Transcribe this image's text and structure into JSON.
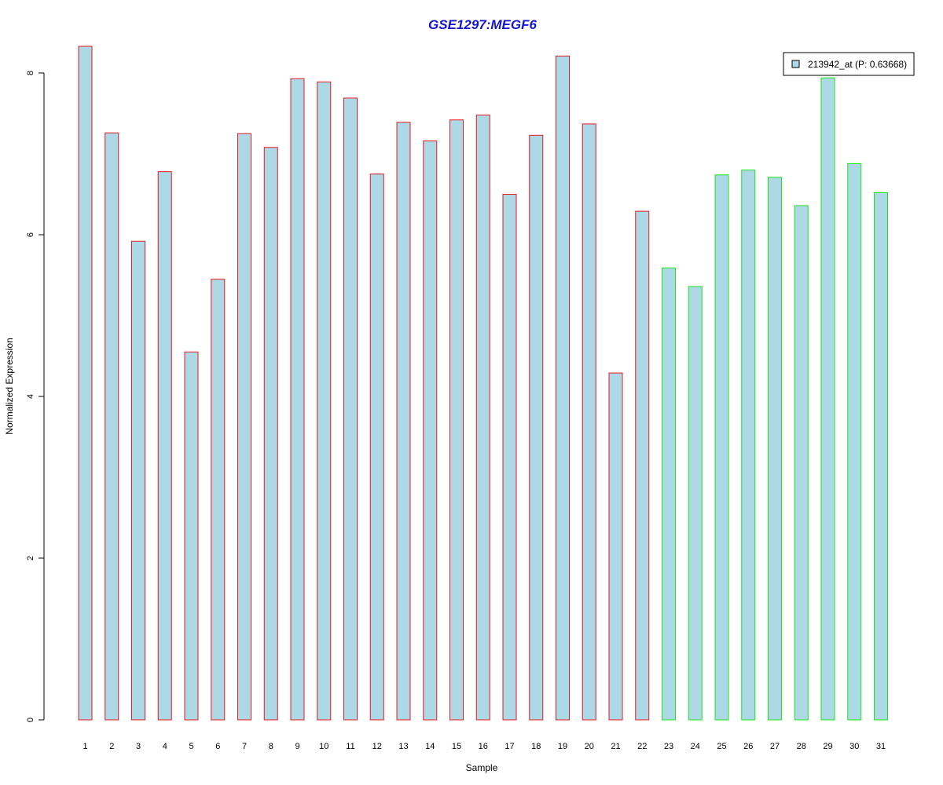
{
  "chart_data": {
    "type": "bar",
    "title": "GSE1297:MEGF6",
    "xlabel": "Sample",
    "ylabel": "Normalized Expression",
    "categories": [
      "1",
      "2",
      "3",
      "4",
      "5",
      "6",
      "7",
      "8",
      "9",
      "10",
      "11",
      "12",
      "13",
      "14",
      "15",
      "16",
      "17",
      "18",
      "19",
      "20",
      "21",
      "22",
      "23",
      "24",
      "25",
      "26",
      "27",
      "28",
      "29",
      "30",
      "31"
    ],
    "series": [
      {
        "name": "213942_at (P: 0.63668)",
        "values": [
          8.33,
          7.26,
          5.92,
          6.78,
          4.55,
          5.45,
          7.25,
          7.08,
          7.93,
          7.89,
          7.69,
          6.75,
          7.39,
          7.16,
          7.42,
          7.48,
          6.5,
          7.23,
          8.21,
          7.37,
          4.29,
          6.29,
          5.59,
          5.36,
          6.74,
          6.8,
          6.71,
          6.36,
          7.94,
          6.88,
          6.52
        ]
      }
    ],
    "groups": [
      {
        "samples": "1-22",
        "border_color": "#e8191f"
      },
      {
        "samples": "23-31",
        "border_color": "#19e619"
      }
    ],
    "bar_fill": "#add8e6",
    "title_color": "#1414d2",
    "ylim": [
      0,
      8.33
    ],
    "yticks": [
      0,
      2,
      4,
      6,
      8
    ],
    "legend_position": "top-right",
    "grid": false
  }
}
